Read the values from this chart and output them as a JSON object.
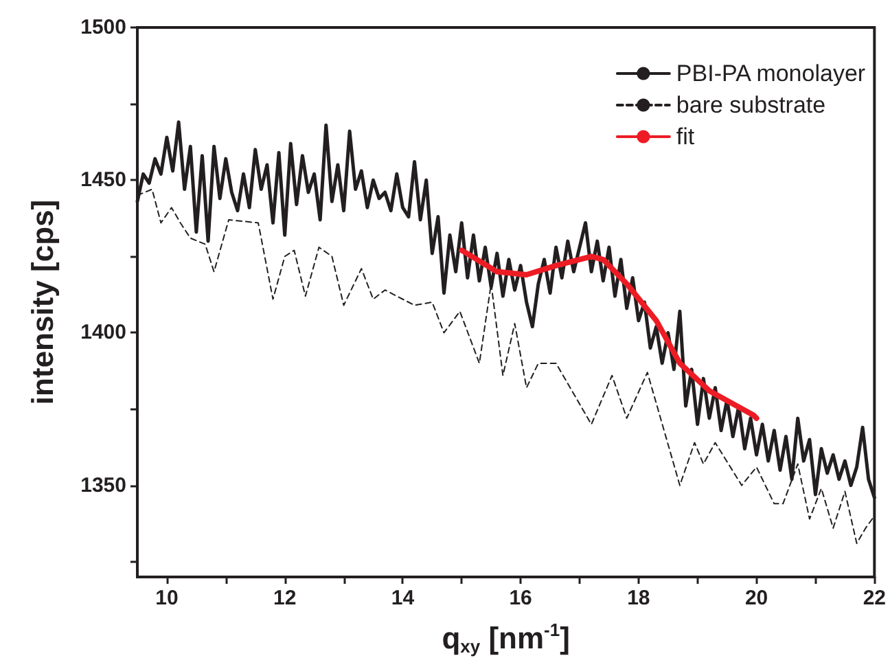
{
  "chart_data": {
    "type": "line",
    "xlabel": "q$_{xy}$ [nm$^{-1}$]",
    "ylabel": "intensity [cps]",
    "xlim": [
      9.5,
      22
    ],
    "ylim": [
      1320,
      1500
    ],
    "xticks": [
      10,
      {
        "value": 11,
        "label": null
      },
      12,
      {
        "value": 13,
        "label": null
      },
      14,
      {
        "value": 15,
        "label": null
      },
      16,
      {
        "value": 17,
        "label": null
      },
      18,
      {
        "value": 19,
        "label": null
      },
      20,
      {
        "value": 21,
        "label": null
      },
      22
    ],
    "yticks": [
      {
        "value": 1325,
        "label": null
      },
      1350,
      {
        "value": 1375,
        "label": null
      },
      1400,
      {
        "value": 1425,
        "label": null
      },
      1450,
      {
        "value": 1475,
        "label": null
      },
      1500
    ],
    "grid": false,
    "legend": "top right",
    "marker": "none",
    "series": [
      {
        "name": "PBI-PA monolayer",
        "color": "#231f20",
        "line_style": "solid",
        "x": [
          9.5,
          9.6,
          9.7,
          9.8,
          9.9,
          10.0,
          10.1,
          10.2,
          10.3,
          10.4,
          10.5,
          10.6,
          10.7,
          10.8,
          10.9,
          11.0,
          11.1,
          11.2,
          11.3,
          11.4,
          11.5,
          11.6,
          11.7,
          11.8,
          11.9,
          12.0,
          12.1,
          12.2,
          12.3,
          12.4,
          12.5,
          12.6,
          12.7,
          12.8,
          12.9,
          13.0,
          13.1,
          13.2,
          13.3,
          13.4,
          13.5,
          13.6,
          13.7,
          13.8,
          13.9,
          14.0,
          14.1,
          14.2,
          14.3,
          14.4,
          14.5,
          14.6,
          14.7,
          14.8,
          14.9,
          15.0,
          15.1,
          15.2,
          15.3,
          15.4,
          15.5,
          15.6,
          15.7,
          15.8,
          15.9,
          16.0,
          16.1,
          16.2,
          16.3,
          16.4,
          16.5,
          16.6,
          16.7,
          16.8,
          16.9,
          17.0,
          17.1,
          17.2,
          17.3,
          17.4,
          17.5,
          17.6,
          17.7,
          17.8,
          17.9,
          18.0,
          18.1,
          18.2,
          18.3,
          18.4,
          18.5,
          18.6,
          18.7,
          18.8,
          18.9,
          19.0,
          19.1,
          19.2,
          19.3,
          19.4,
          19.5,
          19.6,
          19.7,
          19.8,
          19.9,
          20.0,
          20.1,
          20.2,
          20.3,
          20.4,
          20.5,
          20.6,
          20.7,
          20.8,
          20.9,
          21.0,
          21.1,
          21.2,
          21.3,
          21.4,
          21.5,
          21.6,
          21.7,
          21.8,
          21.9,
          22.0
        ],
        "values": [
          1443,
          1452,
          1449,
          1457,
          1452,
          1464,
          1453,
          1469,
          1447,
          1461,
          1433,
          1458,
          1430,
          1461,
          1444,
          1457,
          1446,
          1440,
          1452,
          1441,
          1460,
          1447,
          1455,
          1436,
          1459,
          1432,
          1462,
          1442,
          1458,
          1446,
          1452,
          1437,
          1468,
          1443,
          1455,
          1440,
          1466,
          1447,
          1453,
          1441,
          1450,
          1444,
          1446,
          1440,
          1452,
          1441,
          1438,
          1456,
          1437,
          1450,
          1426,
          1438,
          1413,
          1432,
          1420,
          1436,
          1418,
          1432,
          1417,
          1428,
          1415,
          1426,
          1412,
          1424,
          1414,
          1422,
          1410,
          1402,
          1416,
          1424,
          1413,
          1428,
          1418,
          1430,
          1420,
          1428,
          1436,
          1420,
          1430,
          1417,
          1428,
          1412,
          1424,
          1408,
          1418,
          1404,
          1410,
          1395,
          1402,
          1390,
          1400,
          1388,
          1407,
          1376,
          1388,
          1370,
          1385,
          1372,
          1382,
          1368,
          1378,
          1366,
          1376,
          1362,
          1372,
          1360,
          1370,
          1358,
          1368,
          1355,
          1366,
          1352,
          1372,
          1358,
          1365,
          1347,
          1362,
          1354,
          1360,
          1352,
          1358,
          1350,
          1356,
          1369,
          1352,
          1346
        ]
      },
      {
        "name": "bare substrate",
        "color": "#231f20",
        "line_style": "dashed",
        "x": [
          9.5,
          9.75,
          9.9,
          10.08,
          10.23,
          10.4,
          10.65,
          10.8,
          11.05,
          11.55,
          11.8,
          12.0,
          12.16,
          12.35,
          12.58,
          12.8,
          13.0,
          13.3,
          13.5,
          13.7,
          14.2,
          14.5,
          14.7,
          14.97,
          15.3,
          15.5,
          15.7,
          15.9,
          16.1,
          16.3,
          16.6,
          17.2,
          17.55,
          17.8,
          18.15,
          18.7,
          18.95,
          19.1,
          19.3,
          19.75,
          20.0,
          20.3,
          20.45,
          20.7,
          20.9,
          21.1,
          21.3,
          21.5,
          21.7,
          21.85,
          22.0
        ],
        "values": [
          1445,
          1447,
          1436,
          1441,
          1436,
          1431,
          1429,
          1420,
          1437,
          1436,
          1411,
          1425,
          1427,
          1412,
          1428,
          1425,
          1409,
          1421,
          1411,
          1414,
          1409,
          1410,
          1400,
          1407,
          1390,
          1416,
          1386,
          1403,
          1382,
          1390,
          1390,
          1370,
          1386,
          1372,
          1387,
          1350,
          1364,
          1357,
          1364,
          1350,
          1356,
          1344,
          1344,
          1357,
          1339,
          1349,
          1336,
          1348,
          1331,
          1336,
          1340
        ]
      },
      {
        "name": "fit",
        "color": "#ed1c24",
        "line_style": "solid",
        "x": [
          15.0,
          15.6,
          16.1,
          16.6,
          17.2,
          17.4,
          17.8,
          18.3,
          18.7,
          19.2,
          19.95,
          20.0
        ],
        "values": [
          1427,
          1420,
          1419,
          1422,
          1425,
          1424,
          1416,
          1404,
          1390,
          1381,
          1373,
          1372
        ]
      }
    ]
  }
}
